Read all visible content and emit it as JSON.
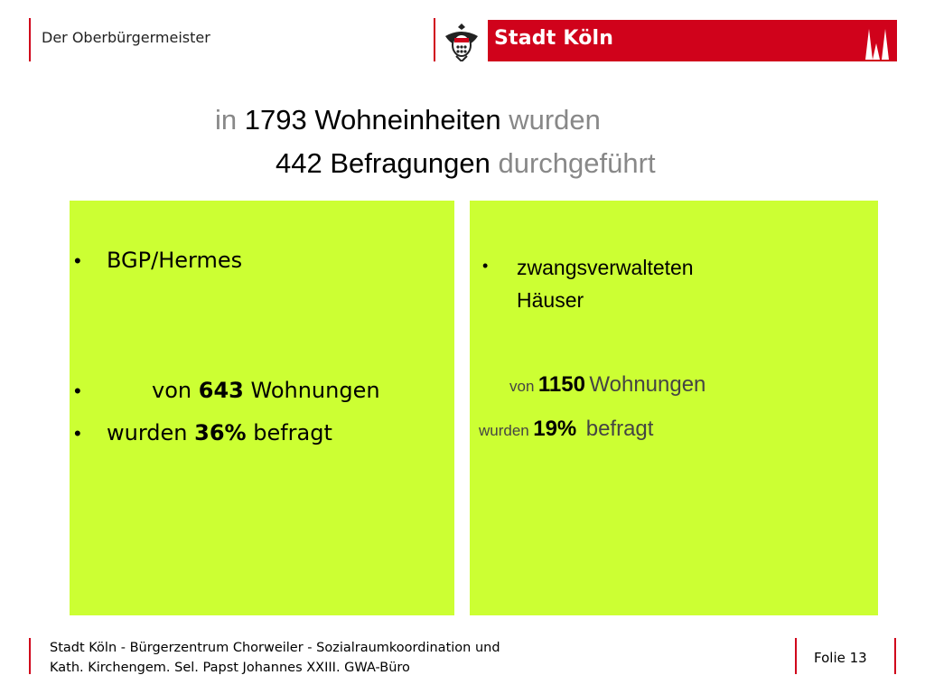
{
  "header": {
    "left_label": "Der Oberbürgermeister",
    "logo_text": "Stadt Köln"
  },
  "title": {
    "line1": {
      "pre": "in",
      "bold": "1793 Wohneinheiten",
      "post": "wurden"
    },
    "line2": {
      "bold": "442 Befragungen",
      "post": "durchgeführt"
    }
  },
  "left_panel": {
    "items": [
      {
        "bullet": "•",
        "text": "BGP/Hermes"
      },
      {
        "bullet": "•",
        "pre": "von",
        "bold": "643",
        "post": "Wohnungen"
      },
      {
        "bullet": "•",
        "pre": "wurden",
        "bold": "36%",
        "post": "befragt"
      }
    ]
  },
  "right_panel": {
    "bullet": "•",
    "heading_line1": "zwangsverwalteten",
    "heading_line2": "Häuser",
    "line1": {
      "pre": "von",
      "bold": "1150",
      "post": "Wohnungen"
    },
    "line2": {
      "pre": "wurden",
      "bold": "19%",
      "post": "befragt"
    }
  },
  "footer": {
    "line1": "Stadt Köln - Bürgerzentrum Chorweiler - Sozialraumkoordination und",
    "line2": "Kath. Kirchengem. Sel. Papst Johannes XXIII. GWA-Büro",
    "slide": "Folie 13"
  },
  "colors": {
    "accent_red": "#d0021b",
    "panel_green": "#ccff33",
    "muted_grey": "#888888"
  }
}
